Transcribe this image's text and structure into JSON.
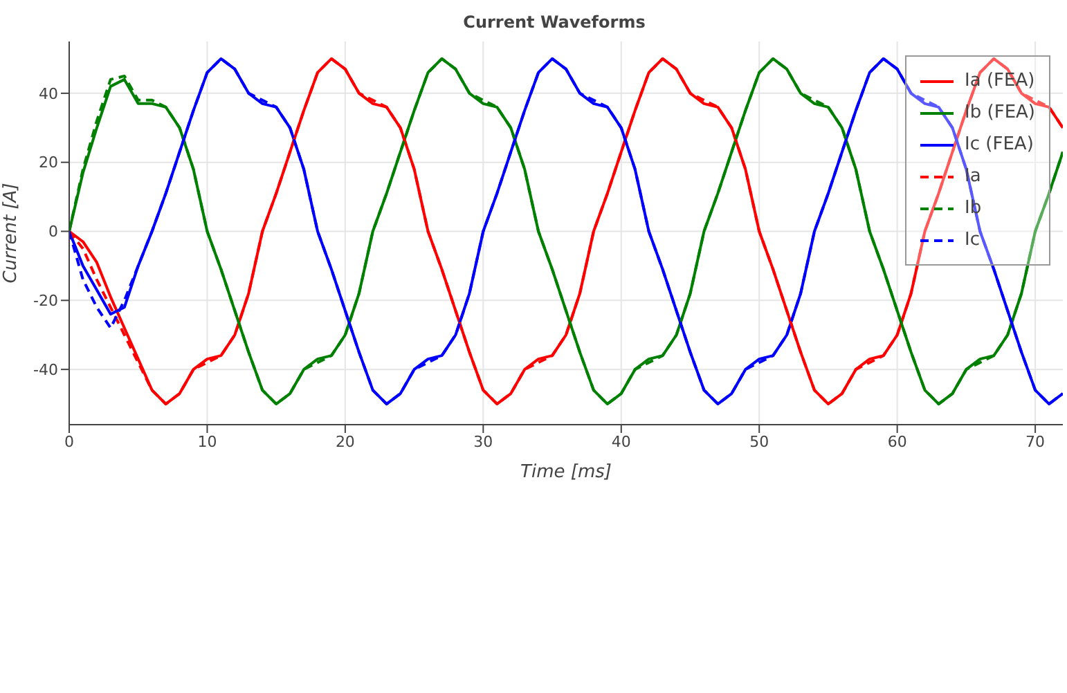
{
  "chart_data": {
    "type": "line",
    "title": "Current Waveforms",
    "xlabel": "Time [ms]",
    "ylabel": "Current [A]",
    "x": [
      0,
      1,
      2,
      3,
      4,
      5,
      6,
      7,
      8,
      9,
      10,
      11,
      12,
      13,
      14,
      15,
      16,
      17,
      18,
      19,
      20,
      21,
      22,
      23,
      24,
      25,
      26,
      27,
      28,
      29,
      30,
      31,
      32,
      33,
      34,
      35,
      36,
      37,
      38,
      39,
      40,
      41,
      42,
      43,
      44,
      45,
      46,
      47,
      48,
      49,
      50,
      51,
      52,
      53,
      54,
      55,
      56,
      57,
      58,
      59,
      60,
      61,
      62,
      63,
      64,
      65,
      66,
      67,
      68,
      69,
      70,
      71,
      72
    ],
    "xlim": [
      0,
      72
    ],
    "xticks": [
      0,
      10,
      20,
      30,
      40,
      50,
      60,
      70
    ],
    "ylim": [
      -56,
      55
    ],
    "yticks": [
      -40,
      -20,
      0,
      20,
      40
    ],
    "grid": true,
    "legend": "top right",
    "marker": "none",
    "series": [
      {
        "name": "Ia (FEA)",
        "color": "#ff0000",
        "line_style": "solid",
        "values": [
          0,
          -3,
          -9,
          -19,
          -28,
          -37,
          -46,
          -50,
          -47,
          -40,
          -37,
          -36,
          -30,
          -18,
          0,
          11,
          23,
          35,
          46,
          50,
          47,
          40,
          37,
          36,
          30,
          18,
          0,
          -11,
          -23,
          -35,
          -46,
          -50,
          -47,
          -40,
          -37,
          -36,
          -30,
          -18,
          0,
          11,
          23,
          35,
          46,
          50,
          47,
          40,
          37,
          36,
          30,
          18,
          0,
          -11,
          -23,
          -35,
          -46,
          -50,
          -47,
          -40,
          -37,
          -36,
          -30,
          -18,
          0,
          11,
          23,
          35,
          46,
          50,
          47,
          40,
          37,
          36,
          30
        ]
      },
      {
        "name": "Ib (FEA)",
        "color": "#008000",
        "line_style": "solid",
        "values": [
          0,
          17,
          30,
          42,
          44,
          37,
          37,
          36,
          30,
          18,
          0,
          -11,
          -23,
          -35,
          -46,
          -50,
          -47,
          -40,
          -37,
          -36,
          -30,
          -18,
          0,
          11,
          23,
          35,
          46,
          50,
          47,
          40,
          37,
          36,
          30,
          18,
          0,
          -11,
          -23,
          -35,
          -46,
          -50,
          -47,
          -40,
          -37,
          -36,
          -30,
          -18,
          0,
          11,
          23,
          35,
          46,
          50,
          47,
          40,
          37,
          36,
          30,
          18,
          0,
          -11,
          -23,
          -35,
          -46,
          -50,
          -47,
          -40,
          -37,
          -36,
          -30,
          -18,
          0,
          11,
          23
        ]
      },
      {
        "name": "Ic (FEA)",
        "color": "#0000ff",
        "line_style": "solid",
        "values": [
          0,
          -10,
          -17,
          -24,
          -22,
          -10,
          0,
          11,
          23,
          35,
          46,
          50,
          47,
          40,
          37,
          36,
          30,
          18,
          0,
          -11,
          -23,
          -35,
          -46,
          -50,
          -47,
          -40,
          -37,
          -36,
          -30,
          -18,
          0,
          11,
          23,
          35,
          46,
          50,
          47,
          40,
          37,
          36,
          30,
          18,
          0,
          -11,
          -23,
          -35,
          -46,
          -50,
          -47,
          -40,
          -37,
          -36,
          -30,
          -18,
          0,
          11,
          23,
          35,
          46,
          50,
          47,
          40,
          37,
          36,
          30,
          18,
          0,
          -11,
          -23,
          -35,
          -46,
          -50,
          -47
        ]
      },
      {
        "name": "Ia",
        "color": "#ff0000",
        "line_style": "dashed",
        "values": [
          0,
          -5,
          -14,
          -22,
          -30,
          -38,
          -46,
          -50,
          -47,
          -40,
          -38,
          -36,
          -30,
          -18,
          0,
          11,
          23,
          35,
          46,
          50,
          47,
          40,
          38,
          36,
          30,
          18,
          0,
          -11,
          -23,
          -35,
          -46,
          -50,
          -47,
          -40,
          -38,
          -36,
          -30,
          -18,
          0,
          11,
          23,
          35,
          46,
          50,
          47,
          40,
          38,
          36,
          30,
          18,
          0,
          -11,
          -23,
          -35,
          -46,
          -50,
          -47,
          -40,
          -38,
          -36,
          -30,
          -18,
          0,
          11,
          23,
          35,
          46,
          50,
          47,
          40,
          38,
          36,
          30
        ]
      },
      {
        "name": "Ib",
        "color": "#008000",
        "line_style": "dashed",
        "values": [
          0,
          18,
          32,
          44,
          45,
          38,
          38,
          36,
          30,
          18,
          0,
          -11,
          -23,
          -35,
          -46,
          -50,
          -47,
          -40,
          -38,
          -36,
          -30,
          -18,
          0,
          11,
          23,
          35,
          46,
          50,
          47,
          40,
          38,
          36,
          30,
          18,
          0,
          -11,
          -23,
          -35,
          -46,
          -50,
          -47,
          -40,
          -38,
          -36,
          -30,
          -18,
          0,
          11,
          23,
          35,
          46,
          50,
          47,
          40,
          38,
          36,
          30,
          18,
          0,
          -11,
          -23,
          -35,
          -46,
          -50,
          -47,
          -40,
          -38,
          -36,
          -30,
          -18,
          0,
          11,
          23
        ]
      },
      {
        "name": "Ic",
        "color": "#0000ff",
        "line_style": "dashed",
        "values": [
          0,
          -14,
          -22,
          -28,
          -20,
          -10,
          0,
          11,
          23,
          35,
          46,
          50,
          47,
          40,
          38,
          36,
          30,
          18,
          0,
          -11,
          -23,
          -35,
          -46,
          -50,
          -47,
          -40,
          -38,
          -36,
          -30,
          -18,
          0,
          11,
          23,
          35,
          46,
          50,
          47,
          40,
          38,
          36,
          30,
          18,
          0,
          -11,
          -23,
          -35,
          -46,
          -50,
          -47,
          -40,
          -38,
          -36,
          -30,
          -18,
          0,
          11,
          23,
          35,
          46,
          50,
          47,
          40,
          38,
          36,
          30,
          18,
          0,
          -11,
          -23,
          -35,
          -46,
          -50,
          -47
        ]
      }
    ]
  }
}
